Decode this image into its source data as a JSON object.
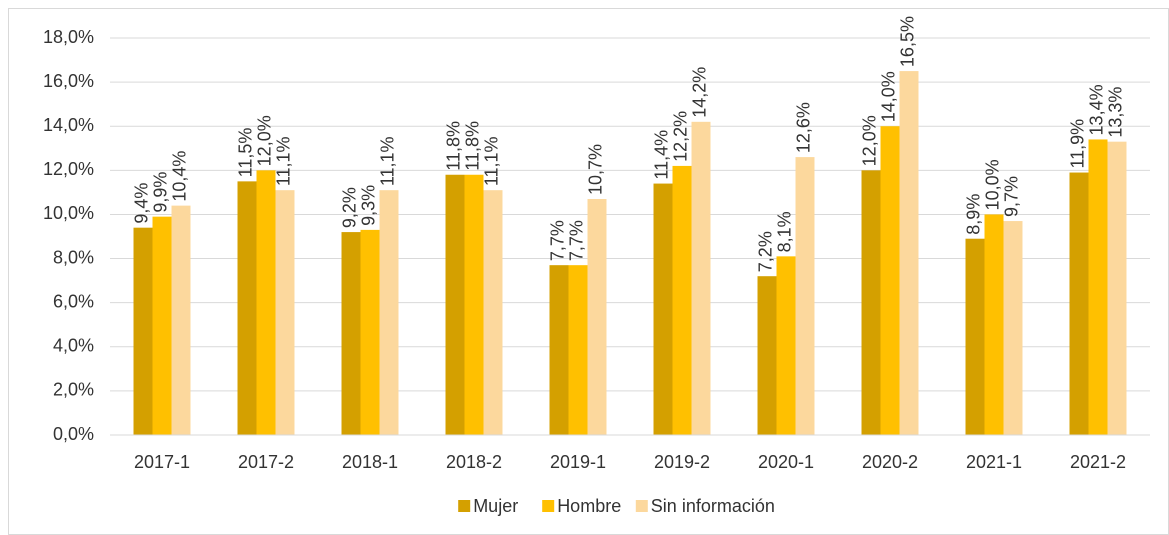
{
  "chart_data": {
    "type": "bar",
    "categories": [
      "2017-1",
      "2017-2",
      "2018-1",
      "2018-2",
      "2019-1",
      "2019-2",
      "2020-1",
      "2020-2",
      "2021-1",
      "2021-2"
    ],
    "series": [
      {
        "name": "Mujer",
        "color": "#d4a000",
        "values": [
          9.4,
          11.5,
          9.2,
          11.8,
          7.7,
          11.4,
          7.2,
          12.0,
          8.9,
          11.9
        ],
        "value_labels": [
          "9,4%",
          "11,5%",
          "9,2%",
          "11,8%",
          "7,7%",
          "11,4%",
          "7,2%",
          "12,0%",
          "8,9%",
          "11,9%"
        ]
      },
      {
        "name": "Hombre",
        "color": "#ffc000",
        "values": [
          9.9,
          12.0,
          9.3,
          11.8,
          7.7,
          12.2,
          8.1,
          14.0,
          10.0,
          13.4
        ],
        "value_labels": [
          "9,9%",
          "12,0%",
          "9,3%",
          "11,8%",
          "7,7%",
          "12,2%",
          "8,1%",
          "14,0%",
          "10,0%",
          "13,4%"
        ]
      },
      {
        "name": "Sin información",
        "color": "#fcd89d",
        "values": [
          10.4,
          11.1,
          11.1,
          11.1,
          10.7,
          14.2,
          12.6,
          16.5,
          9.7,
          13.3
        ],
        "value_labels": [
          "10,4%",
          "11,1%",
          "11,1%",
          "11,1%",
          "10,7%",
          "14,2%",
          "12,6%",
          "16,5%",
          "9,7%",
          "13,3%"
        ]
      }
    ],
    "ylim": [
      0,
      18
    ],
    "yticks": [
      {
        "value": 0,
        "label": "0,0%"
      },
      {
        "value": 2,
        "label": "2,0%"
      },
      {
        "value": 4,
        "label": "4,0%"
      },
      {
        "value": 6,
        "label": "6,0%"
      },
      {
        "value": 8,
        "label": "8,0%"
      },
      {
        "value": 10,
        "label": "10,0%"
      },
      {
        "value": 12,
        "label": "12,0%"
      },
      {
        "value": 14,
        "label": "14,0%"
      },
      {
        "value": 16,
        "label": "16,0%"
      },
      {
        "value": 18,
        "label": "18,0%"
      }
    ],
    "grid": true,
    "legend": "bottom"
  }
}
